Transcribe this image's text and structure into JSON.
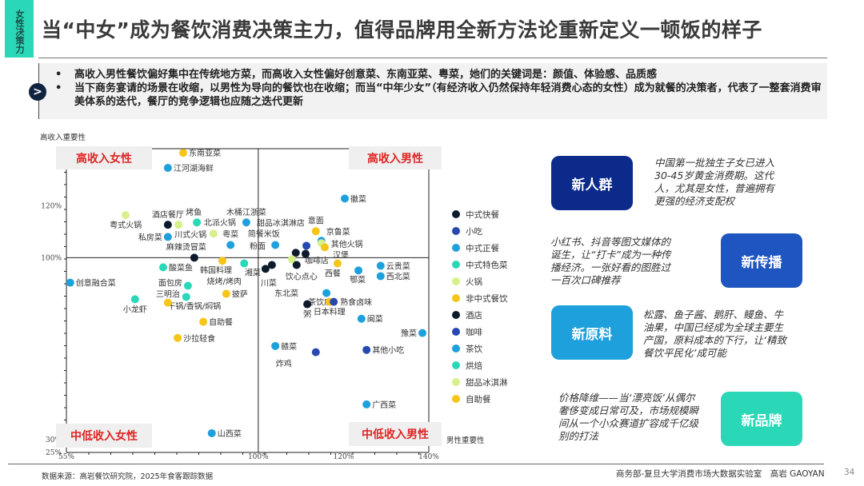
{
  "header": {
    "tag": "女性决策力",
    "title": "当“中女”成为餐饮消费决策主力，值得品牌用全新方法论重新定义一顿饭的样子"
  },
  "summary": {
    "icon": "chevron-right-circle-icon",
    "bullets": [
      "高收入男性餐饮偏好集中在传统地方菜，而高收入女性偏好创意菜、东南亚菜、粤菜，她们的关键词是：颜值、体验感、品质感",
      "当下商务宴请的场景在收缩，以男性为导向的餐饮也在收缩；而当“中年少女”（有经济收入仍然保持年轻消费心态的女性）成为就餐的决策者，代表了一整套消费审美体系的迭代，餐厅的竞争逻辑也应随之迭代更新"
    ]
  },
  "chart_data": {
    "type": "scatter",
    "ylabel": "高收入重要性",
    "xlabel": "男性重要性",
    "xlim": [
      55,
      140
    ],
    "ylim": [
      25,
      142
    ],
    "x_ticks": [
      "55%",
      "100%",
      "120%",
      "140%"
    ],
    "x_tick_values": [
      55,
      100,
      120,
      140
    ],
    "y_ticks": [
      "25%",
      "30%",
      "100%",
      "120%"
    ],
    "y_tick_values": [
      25,
      30,
      100,
      120
    ],
    "reference_lines": {
      "x": 100,
      "y": 100
    },
    "quadrants": {
      "top_left": "高收入女性",
      "top_right": "高收入男性",
      "bottom_left": "中低收入女性",
      "bottom_right": "中低收入男性"
    },
    "legend_position": "right",
    "legend": [
      {
        "name": "中式快餐",
        "color": "#0d1b2a"
      },
      {
        "name": "小吃",
        "color": "#2748b0"
      },
      {
        "name": "中式正餐",
        "color": "#1ea0dc"
      },
      {
        "name": "中式特色菜",
        "color": "#2ad8b8"
      },
      {
        "name": "火锅",
        "color": "#d8f08a"
      },
      {
        "name": "非中式餐饮",
        "color": "#f5c518"
      },
      {
        "name": "酒店",
        "color": "#0d1b2a"
      },
      {
        "name": "咖啡",
        "color": "#2748b0"
      },
      {
        "name": "茶饮",
        "color": "#1ea0dc"
      },
      {
        "name": "烘焙",
        "color": "#2ad8b8"
      },
      {
        "name": "甜品冰淇淋",
        "color": "#d8f08a"
      },
      {
        "name": "自助餐",
        "color": "#f5c518"
      }
    ],
    "points": [
      {
        "label": "东南亚菜",
        "x": 82.4,
        "y": 140.4,
        "category": "非中式餐饮"
      },
      {
        "label": "江河湖海鲜",
        "x": 78.8,
        "y": 134.6,
        "category": "中式正餐"
      },
      {
        "label": "粤式火锅",
        "x": 68.9,
        "y": 116.4,
        "category": "火锅"
      },
      {
        "label": "酒店餐厅",
        "x": 78.8,
        "y": 112.7,
        "category": "酒店"
      },
      {
        "label": "川式火锅",
        "x": 81.3,
        "y": 112.7,
        "category": "火锅"
      },
      {
        "label": "烤鱼",
        "x": 85.6,
        "y": 113.6,
        "category": "中式特色菜"
      },
      {
        "label": "北派火锅",
        "x": 89.5,
        "y": 109.3,
        "category": "火锅"
      },
      {
        "label": "木桶江浙菜",
        "x": 97.2,
        "y": 113.6,
        "category": "中式正餐"
      },
      {
        "label": "私房菜",
        "x": 78.8,
        "y": 108.0,
        "category": "中式正餐"
      },
      {
        "label": "粤菜",
        "x": 93.5,
        "y": 104.9,
        "category": "中式正餐"
      },
      {
        "label": "麻辣烫冒菜",
        "x": 85.0,
        "y": 100.0,
        "category": "中式快餐"
      },
      {
        "label": "韩国料理",
        "x": 91.6,
        "y": 98.8,
        "category": "非中式餐饮"
      },
      {
        "label": "烧烤/烤肉",
        "x": 96.7,
        "y": 97.8,
        "category": "中式特色菜"
      },
      {
        "label": "酸菜鱼",
        "x": 77.7,
        "y": 96.3,
        "category": "中式特色菜"
      },
      {
        "label": "创意融合菜",
        "x": 55.9,
        "y": 90.4,
        "category": "中式正餐"
      },
      {
        "label": "面包房",
        "x": 83.5,
        "y": 89.2,
        "category": "烘焙"
      },
      {
        "label": "干锅/香锅/焖锅",
        "x": 83.1,
        "y": 84.9,
        "category": "中式特色菜"
      },
      {
        "label": "三明治",
        "x": 78.8,
        "y": 82.7,
        "category": "非中式餐饮"
      },
      {
        "label": "披萨",
        "x": 92.5,
        "y": 86.1,
        "category": "非中式餐饮"
      },
      {
        "label": "小龙虾",
        "x": 71.1,
        "y": 84.0,
        "category": "中式特色菜"
      },
      {
        "label": "自助餐",
        "x": 87.1,
        "y": 75.3,
        "category": "自助餐"
      },
      {
        "label": "沙拉轻食",
        "x": 81.1,
        "y": 69.1,
        "category": "非中式餐饮"
      },
      {
        "label": "山西菜",
        "x": 89.1,
        "y": 32.4,
        "category": "中式正餐"
      },
      {
        "label": "徽菜",
        "x": 120.3,
        "y": 122.8,
        "category": "中式正餐"
      },
      {
        "label": "意面",
        "x": 113.5,
        "y": 110.2,
        "category": "非中式餐饮"
      },
      {
        "label": "京鲁菜",
        "x": 114.8,
        "y": 106.5,
        "category": "中式正餐"
      },
      {
        "label": "其他火锅",
        "x": 114.8,
        "y": 105.6,
        "category": "火锅"
      },
      {
        "label": "汉堡",
        "x": 115.6,
        "y": 104.0,
        "category": "非中式餐饮"
      },
      {
        "label": "咖啡店",
        "x": 111.3,
        "y": 104.6,
        "category": "咖啡"
      },
      {
        "label": "简餐米饭",
        "x": 108.8,
        "y": 101.9,
        "category": "中式快餐"
      },
      {
        "label": "粉面",
        "x": 111.1,
        "y": 101.5,
        "category": "中式快餐"
      },
      {
        "label": "东北菜",
        "x": 104.0,
        "y": 104.9,
        "category": "中式正餐"
      },
      {
        "label": "甜品冰淇淋店",
        "x": 107.9,
        "y": 99.4,
        "category": "甜品冰淇淋"
      },
      {
        "label": "饮心点心",
        "x": 109.0,
        "y": 97.2,
        "category": "中式快餐"
      },
      {
        "label": "湘菜",
        "x": 103.2,
        "y": 97.2,
        "category": "中式快餐"
      },
      {
        "label": "川菜",
        "x": 101.7,
        "y": 95.7,
        "category": "中式快餐"
      },
      {
        "label": "西餐",
        "x": 118.6,
        "y": 97.8,
        "category": "非中式餐饮"
      },
      {
        "label": "鄂菜",
        "x": 123.5,
        "y": 95.1,
        "category": "中式正餐"
      },
      {
        "label": "云贵菜",
        "x": 128.7,
        "y": 96.9,
        "category": "中式正餐"
      },
      {
        "label": "西北菜",
        "x": 128.7,
        "y": 92.9,
        "category": "中式正餐"
      },
      {
        "label": "茶饮店",
        "x": 116.0,
        "y": 86.4,
        "category": "茶饮"
      },
      {
        "label": "日本料理",
        "x": 116.7,
        "y": 83.0,
        "category": "非中式餐饮"
      },
      {
        "label": "熟食卤味",
        "x": 117.7,
        "y": 83.0,
        "category": "小吃"
      },
      {
        "label": "粥",
        "x": 111.5,
        "y": 82.1,
        "category": "中式快餐"
      },
      {
        "label": "闽菜",
        "x": 124.2,
        "y": 76.5,
        "category": "中式正餐"
      },
      {
        "label": "豫菜",
        "x": 138.5,
        "y": 71.0,
        "category": "中式正餐"
      },
      {
        "label": "赣菜",
        "x": 104.0,
        "y": 66.0,
        "category": "中式正餐"
      },
      {
        "label": "炸鸡",
        "x": 113.5,
        "y": 63.6,
        "category": "小吃"
      },
      {
        "label": "其他小吃",
        "x": 125.4,
        "y": 64.5,
        "category": "小吃"
      },
      {
        "label": "广西菜",
        "x": 125.4,
        "y": 43.5,
        "category": "中式正餐"
      }
    ]
  },
  "cards": [
    {
      "label": "新人群",
      "color": "#0b2a8a",
      "text": "中国第一批独生子女已进入30-45岁黄金消费期。这代人，尤其是女性，普遍拥有更强的经济支配权"
    },
    {
      "label": "新传播",
      "color": "#1f55c0",
      "text": "小红书、抖音等图文媒体的诞生，让“打卡”成为一种传播经济。一张好看的图胜过一百次口碑推荐"
    },
    {
      "label": "新原料",
      "color": "#1ea0dc",
      "text": "松露、鱼子酱、鹅肝、鳗鱼、牛油果，中国已经成为全球主要生产国，原料成本的下行，让‘精致餐饮平民化’成可能"
    },
    {
      "label": "新品牌",
      "color": "#2ad8b8",
      "text": "价格降维——当‘漂亮饭’从偶尔奢侈变成日常可及，市场规模瞬间从一个小众赛道扩容成千亿级别的打法"
    }
  ],
  "footer": {
    "source": "数据来源：高岩餐饮研究院，2025年食客跟踪数据",
    "org": "商务部-复旦大学消费市场大数据实验室　高岩 GAOYAN",
    "page": "34"
  }
}
